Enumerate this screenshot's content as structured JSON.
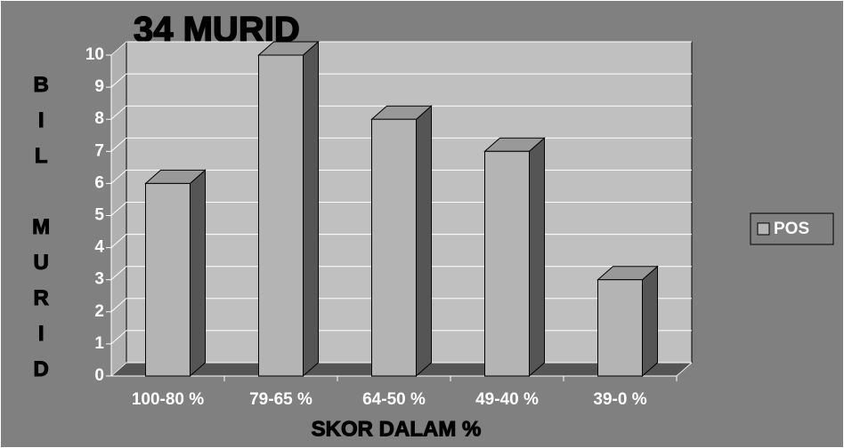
{
  "chart_data": {
    "type": "bar",
    "title": "34 MURID",
    "x_label": "SKOR DALAM %",
    "y_label": "BIL MURID",
    "categories": [
      "100-80 %",
      "79-65 %",
      "64-50 %",
      "49-40 %",
      "39-0 %"
    ],
    "series": [
      {
        "name": "POS",
        "color": "#b4b4b4",
        "values": [
          6,
          10,
          8,
          7,
          3
        ]
      }
    ],
    "ylim": [
      0,
      10
    ],
    "yticks": [
      0,
      1,
      2,
      3,
      4,
      5,
      6,
      7,
      8,
      9,
      10
    ],
    "grid": true,
    "legend": "right"
  }
}
